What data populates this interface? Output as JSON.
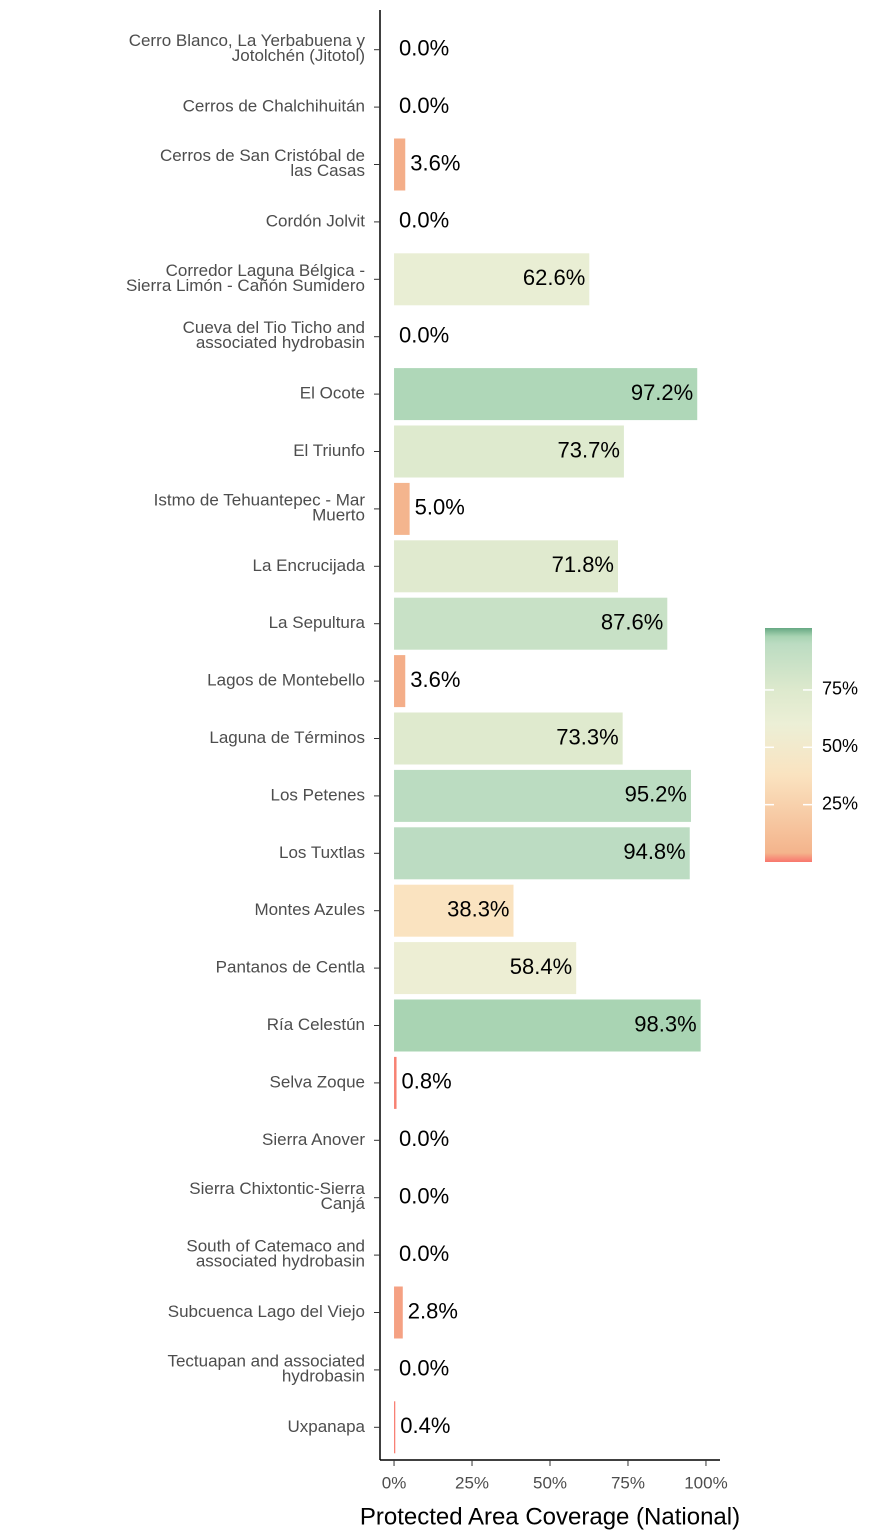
{
  "chart_data": {
    "type": "bar",
    "orientation": "horizontal",
    "x_label": "Protected Area Coverage (National)",
    "categories": [
      "Cerro Blanco, La Yerbabuena y\nJotolchén (Jitotol)",
      "Cerros de Chalchihuitán",
      "Cerros de San Cristóbal de\nlas Casas",
      "Cordón Jolvit",
      "Corredor Laguna Bélgica -\nSierra Limón - Cañón Sumidero",
      "Cueva del Tio Ticho and\nassociated hydrobasin",
      "El Ocote",
      "El Triunfo",
      "Istmo de Tehuantepec - Mar\nMuerto",
      "La Encrucijada",
      "La Sepultura",
      "Lagos de Montebello",
      "Laguna de Términos",
      "Los Petenes",
      "Los Tuxtlas",
      "Montes Azules",
      "Pantanos de Centla",
      "Ría Celestún",
      "Selva Zoque",
      "Sierra Anover",
      "Sierra Chixtontic-Sierra\nCanjá",
      "South of Catemaco and\nassociated hydrobasin",
      "Subcuenca Lago del Viejo",
      "Tectuapan and associated\nhydrobasin",
      "Uxpanapa"
    ],
    "values": [
      0.0,
      0.0,
      3.6,
      0.0,
      62.6,
      0.0,
      97.2,
      73.7,
      5.0,
      71.8,
      87.6,
      3.6,
      73.3,
      95.2,
      94.8,
      38.3,
      58.4,
      98.3,
      0.8,
      0.0,
      0.0,
      0.0,
      2.8,
      0.0,
      0.4
    ],
    "value_labels": [
      "0.0%",
      "0.0%",
      "3.6%",
      "0.0%",
      "62.6%",
      "0.0%",
      "97.2%",
      "73.7%",
      "5.0%",
      "71.8%",
      "87.6%",
      "3.6%",
      "73.3%",
      "95.2%",
      "94.8%",
      "38.3%",
      "58.4%",
      "98.3%",
      "0.8%",
      "0.0%",
      "0.0%",
      "0.0%",
      "2.8%",
      "0.0%",
      "0.4%"
    ],
    "xlim": [
      -4.5,
      104.5
    ],
    "xticks": [
      {
        "value": 0,
        "label": "0%"
      },
      {
        "value": 25,
        "label": "25%"
      },
      {
        "value": 50,
        "label": "50%"
      },
      {
        "value": 75,
        "label": "75%"
      },
      {
        "value": 100,
        "label": "100%"
      }
    ],
    "color_scale": {
      "lim": [
        0,
        102
      ],
      "stops": [
        {
          "value": 0,
          "color": "#f8766d"
        },
        {
          "value": 4,
          "color": "#f4b48c"
        },
        {
          "value": 38,
          "color": "#fae3c0"
        },
        {
          "value": 60,
          "color": "#ecefd6"
        },
        {
          "value": 75,
          "color": "#dde9cd"
        },
        {
          "value": 95,
          "color": "#bcdcc2"
        },
        {
          "value": 98.3,
          "color": "#a9d4b3"
        },
        {
          "value": 102,
          "color": "#66a883"
        }
      ],
      "ticks": [
        {
          "value": 25,
          "label": "25%"
        },
        {
          "value": 50,
          "label": "50%"
        },
        {
          "value": 75,
          "label": "75%"
        }
      ]
    }
  }
}
